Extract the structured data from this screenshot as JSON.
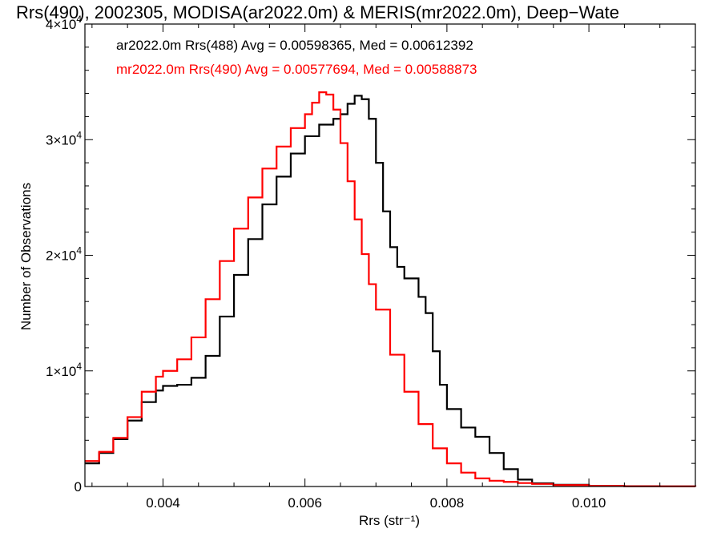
{
  "chart_data": {
    "type": "line",
    "title": "Rrs(490), 2002305, MODISA(ar2022.0m) & MERIS(mr2022.0m), Deep−Wate",
    "xlabel": "Rrs (str⁻¹)",
    "ylabel": "Number of Observations",
    "xlim": [
      0.0029,
      0.0115
    ],
    "ylim": [
      0,
      40000
    ],
    "x_ticks": [
      {
        "value": 0.004,
        "label": "0.004"
      },
      {
        "value": 0.006,
        "label": "0.006"
      },
      {
        "value": 0.008,
        "label": "0.008"
      },
      {
        "value": 0.01,
        "label": "0.010"
      }
    ],
    "y_ticks": [
      {
        "value": 0,
        "mantissa": "0",
        "exponent": ""
      },
      {
        "value": 10000,
        "mantissa": "1×10",
        "exponent": "4"
      },
      {
        "value": 20000,
        "mantissa": "2×10",
        "exponent": "4"
      },
      {
        "value": 30000,
        "mantissa": "3×10",
        "exponent": "4"
      },
      {
        "value": 40000,
        "mantissa": "4×10",
        "exponent": "4"
      }
    ],
    "grid": false,
    "legend_position": "top-left",
    "series": [
      {
        "name": "ar2022.0m Rrs(488) Avg = 0.00598365, Med = 0.00612392",
        "color": "#000000",
        "x": [
          0.0029,
          0.0031,
          0.0033,
          0.0035,
          0.0037,
          0.0039,
          0.004,
          0.0042,
          0.0044,
          0.0046,
          0.0048,
          0.005,
          0.0052,
          0.0054,
          0.0056,
          0.0058,
          0.006,
          0.0062,
          0.0064,
          0.0065,
          0.0066,
          0.0067,
          0.0068,
          0.0069,
          0.007,
          0.0071,
          0.0072,
          0.0073,
          0.0074,
          0.0076,
          0.0077,
          0.0078,
          0.0079,
          0.008,
          0.0082,
          0.0084,
          0.0086,
          0.0088,
          0.009,
          0.0092,
          0.0095,
          0.01,
          0.0105,
          0.011,
          0.0115
        ],
        "y": [
          2000,
          2900,
          4100,
          5700,
          7300,
          8300,
          8700,
          8800,
          9400,
          11300,
          14700,
          18300,
          21400,
          24400,
          26800,
          28800,
          30300,
          31300,
          31800,
          32200,
          33100,
          33800,
          33500,
          31800,
          28000,
          23800,
          20700,
          19000,
          18000,
          16400,
          15000,
          11700,
          8800,
          6700,
          5100,
          4300,
          2900,
          1500,
          600,
          280,
          150,
          60,
          25,
          10,
          0
        ]
      },
      {
        "name": "mr2022.0m Rrs(490) Avg = 0.00577694, Med = 0.00588873",
        "color": "#ff0000",
        "x": [
          0.0029,
          0.0031,
          0.0033,
          0.0035,
          0.0037,
          0.0039,
          0.004,
          0.0042,
          0.0044,
          0.0046,
          0.0048,
          0.005,
          0.0052,
          0.0054,
          0.0056,
          0.0058,
          0.006,
          0.0061,
          0.0062,
          0.0063,
          0.0064,
          0.0065,
          0.0066,
          0.0067,
          0.0068,
          0.0069,
          0.007,
          0.0072,
          0.0074,
          0.0076,
          0.0078,
          0.008,
          0.0082,
          0.0084,
          0.0086,
          0.0088,
          0.009,
          0.0092,
          0.0095,
          0.01,
          0.0105,
          0.011,
          0.0115
        ],
        "y": [
          2200,
          3000,
          4200,
          6000,
          8200,
          9500,
          10000,
          11000,
          12900,
          16200,
          19500,
          22300,
          25000,
          27500,
          29400,
          31000,
          32200,
          33200,
          34100,
          33900,
          32600,
          29700,
          26400,
          23100,
          20100,
          17500,
          15300,
          11400,
          8200,
          5400,
          3300,
          2000,
          1200,
          700,
          500,
          400,
          300,
          220,
          120,
          50,
          20,
          8,
          0
        ]
      }
    ]
  }
}
